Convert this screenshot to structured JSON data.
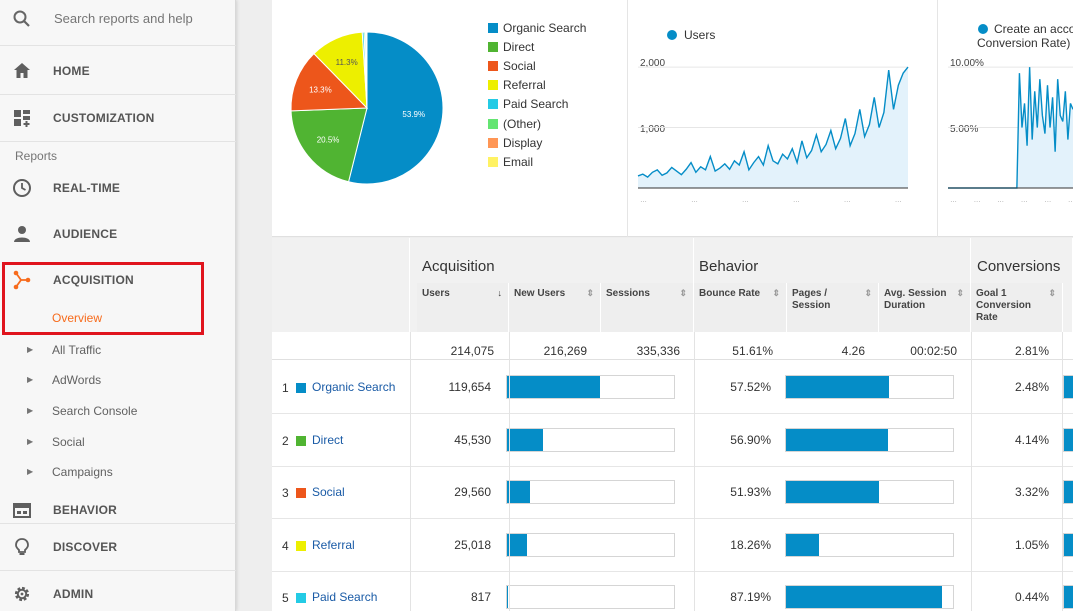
{
  "sidebar": {
    "search_placeholder": "Search reports and help",
    "home": "HOME",
    "customization": "CUSTOMIZATION",
    "reports_label": "Reports",
    "realtime": "REAL-TIME",
    "audience": "AUDIENCE",
    "acquisition": "ACQUISITION",
    "overview": "Overview",
    "sub_items": [
      "All Traffic",
      "AdWords",
      "Search Console",
      "Social",
      "Campaigns"
    ],
    "behavior": "BEHAVIOR",
    "discover": "DISCOVER",
    "admin": "ADMIN"
  },
  "pie": {
    "legend": [
      "Organic Search",
      "Direct",
      "Social",
      "Referral",
      "Paid Search",
      "(Other)",
      "Display",
      "Email"
    ],
    "colors": [
      "#058dc7",
      "#50b432",
      "#ed561b",
      "#edef00",
      "#24cbe5",
      "#64e572",
      "#ff9655",
      "#fff263"
    ],
    "slice_labels": [
      "53.9%",
      "20.5%",
      "13.3%",
      "11.3%"
    ]
  },
  "users_chart": {
    "legend": "Users",
    "y_ticks": [
      "2,000",
      "1,000"
    ]
  },
  "conv_chart": {
    "legend_line1": "Create an acco",
    "legend_line2": "Conversion Rate)",
    "y_ticks": [
      "10.00%",
      "5.00%"
    ]
  },
  "chart_data": [
    {
      "type": "pie",
      "categories": [
        "Organic Search",
        "Direct",
        "Social",
        "Referral",
        "Paid Search",
        "(Other)",
        "Display",
        "Email"
      ],
      "values": [
        53.9,
        20.5,
        13.3,
        11.3,
        0.4,
        0.3,
        0.2,
        0.1
      ],
      "colors": [
        "#058dc7",
        "#50b432",
        "#ed561b",
        "#edef00",
        "#24cbe5",
        "#64e572",
        "#ff9655",
        "#fff263"
      ]
    },
    {
      "type": "area",
      "series": [
        {
          "name": "Users",
          "values": [
            200,
            230,
            180,
            260,
            300,
            210,
            250,
            340,
            280,
            220,
            310,
            420,
            260,
            350,
            300,
            520,
            280,
            330,
            400,
            310,
            450,
            380,
            600,
            300,
            420,
            520,
            380,
            700,
            450,
            400,
            560,
            480,
            650,
            420,
            780,
            500,
            620,
            880,
            600,
            720,
            950,
            650,
            820,
            1150,
            700,
            900,
            1300,
            850,
            1050,
            1500,
            1000,
            1250,
            1950,
            1300,
            1700,
            1900,
            2000
          ]
        }
      ],
      "ylim": [
        0,
        2200
      ],
      "y_ticks": [
        1000,
        2000
      ]
    },
    {
      "type": "area",
      "series": [
        {
          "name": "",
          "values": [
            0,
            0,
            0,
            0,
            0,
            0,
            0,
            0,
            0,
            0,
            0,
            0,
            0,
            0,
            0,
            0,
            0,
            0,
            0,
            0,
            0,
            0,
            0,
            0,
            0,
            0,
            0,
            0,
            9.5,
            5,
            7,
            3.5,
            10,
            4,
            8,
            5,
            9,
            6,
            4.5,
            8.5,
            5,
            7.5,
            3,
            9,
            6,
            5.5,
            8,
            4,
            7,
            6.5
          ]
        }
      ],
      "ylim": [
        0,
        11
      ],
      "y_ticks": [
        5,
        10
      ]
    }
  ],
  "table": {
    "groups": [
      "Acquisition",
      "Behavior",
      "Conversions"
    ],
    "columns": [
      "Users",
      "New Users",
      "Sessions",
      "Bounce Rate",
      "Pages / Session",
      "Avg. Session Duration",
      "Goal 1 Conversion Rate"
    ],
    "totals": {
      "users": "214,075",
      "new_users": "216,269",
      "sessions": "335,336",
      "bounce_rate": "51.61%",
      "pages_session": "4.26",
      "avg_duration": "00:02:50",
      "conv_rate": "2.81%"
    },
    "rows": [
      {
        "idx": "1",
        "name": "Organic Search",
        "color": "#058dc7",
        "users": "119,654",
        "users_frac": 0.559,
        "bounce": "57.52%",
        "bounce_frac": 0.615,
        "conv": "2.48%"
      },
      {
        "idx": "2",
        "name": "Direct",
        "color": "#50b432",
        "users": "45,530",
        "users_frac": 0.213,
        "bounce": "56.90%",
        "bounce_frac": 0.608,
        "conv": "4.14%"
      },
      {
        "idx": "3",
        "name": "Social",
        "color": "#ed561b",
        "users": "29,560",
        "users_frac": 0.138,
        "bounce": "51.93%",
        "bounce_frac": 0.555,
        "conv": "3.32%"
      },
      {
        "idx": "4",
        "name": "Referral",
        "color": "#edef00",
        "users": "25,018",
        "users_frac": 0.117,
        "bounce": "18.26%",
        "bounce_frac": 0.195,
        "conv": "1.05%"
      },
      {
        "idx": "5",
        "name": "Paid Search",
        "color": "#24cbe5",
        "users": "817",
        "users_frac": 0.004,
        "bounce": "87.19%",
        "bounce_frac": 0.932,
        "conv": "0.44%"
      }
    ]
  }
}
